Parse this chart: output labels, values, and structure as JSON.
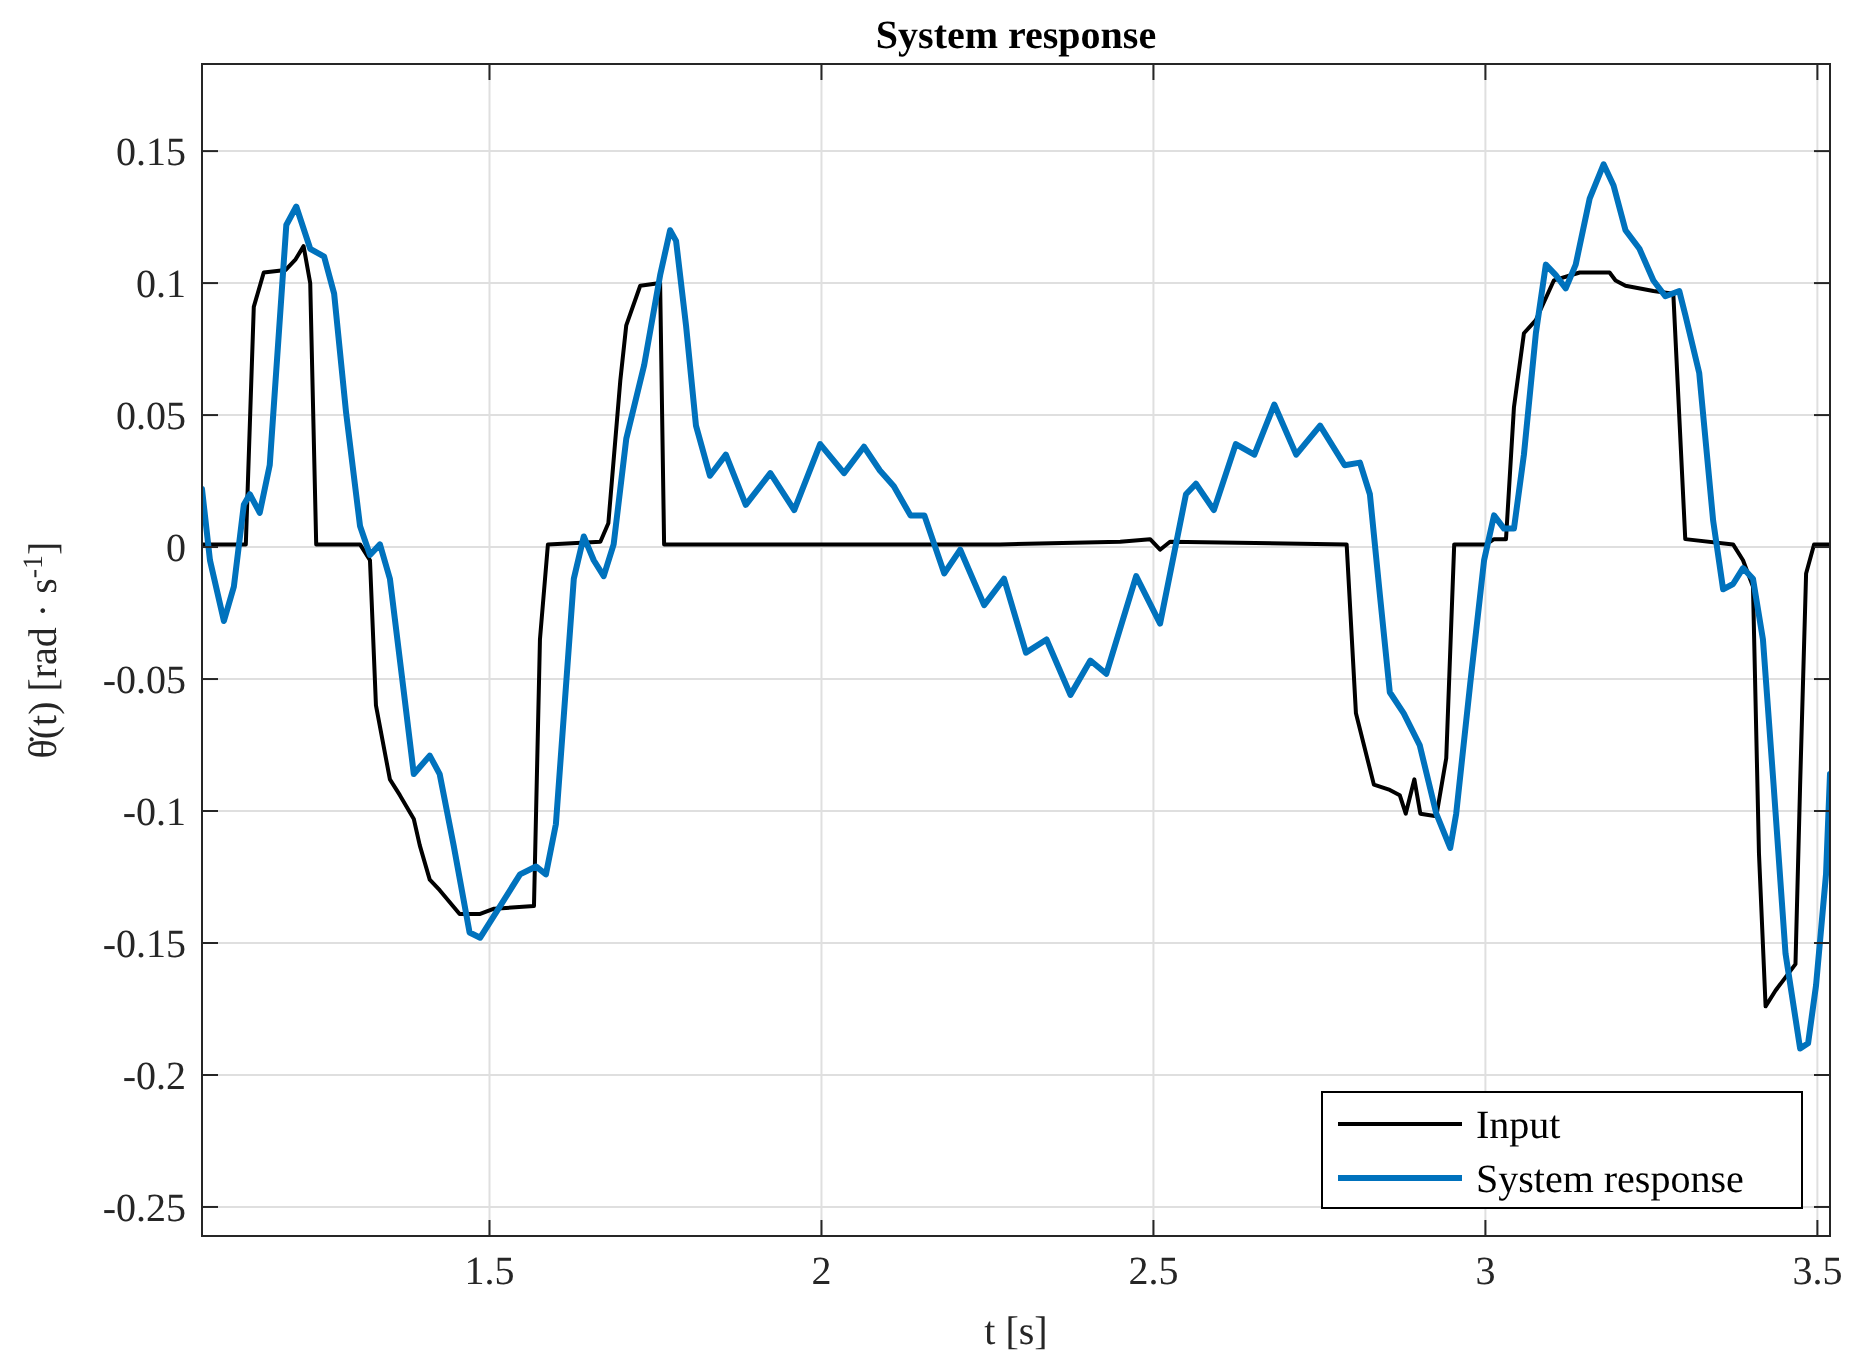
{
  "chart_data": {
    "type": "line",
    "title": "System response",
    "xlabel": "t [s]",
    "ylabel": "θ̇(t) [rad · s$^{-1}$]",
    "xlim": [
      1.067,
      3.519
    ],
    "ylim": [
      -0.261,
      0.183
    ],
    "xticks": [
      1.5,
      2,
      2.5,
      3,
      3.5
    ],
    "yticks": [
      -0.25,
      -0.2,
      -0.15,
      -0.1,
      -0.05,
      0,
      0.05,
      0.1,
      0.15
    ],
    "grid": true,
    "legend": "bottom right",
    "line_style": "solid",
    "series": [
      {
        "name": "Input",
        "color": "#000000",
        "x": [
          1.067,
          1.133,
          1.145,
          1.16,
          1.193,
          1.208,
          1.22,
          1.23,
          1.239,
          1.305,
          1.32,
          1.329,
          1.35,
          1.365,
          1.386,
          1.395,
          1.41,
          1.425,
          1.455,
          1.486,
          1.507,
          1.567,
          1.576,
          1.588,
          1.667,
          1.679,
          1.697,
          1.706,
          1.727,
          1.757,
          1.763,
          1.968,
          2.269,
          2.45,
          2.495,
          2.51,
          2.525,
          2.791,
          2.805,
          2.832,
          2.856,
          2.871,
          2.88,
          2.893,
          2.902,
          2.926,
          2.941,
          2.953,
          3.001,
          3.013,
          3.031,
          3.043,
          3.058,
          3.076,
          3.103,
          3.142,
          3.187,
          3.196,
          3.211,
          3.253,
          3.283,
          3.301,
          3.373,
          3.388,
          3.403,
          3.412,
          3.422,
          3.437,
          3.467,
          3.474,
          3.483,
          3.495,
          3.519
        ],
        "values": [
          0.001,
          0.001,
          0.091,
          0.104,
          0.105,
          0.109,
          0.114,
          0.1,
          0.001,
          0.001,
          -0.005,
          -0.06,
          -0.088,
          -0.094,
          -0.103,
          -0.113,
          -0.126,
          -0.13,
          -0.139,
          -0.139,
          -0.137,
          -0.136,
          -0.035,
          0.001,
          0.002,
          0.009,
          0.063,
          0.084,
          0.099,
          0.1,
          0.001,
          0.001,
          0.001,
          0.002,
          0.003,
          -0.001,
          0.002,
          0.001,
          -0.063,
          -0.09,
          -0.092,
          -0.094,
          -0.101,
          -0.088,
          -0.101,
          -0.102,
          -0.08,
          0.001,
          0.001,
          0.003,
          0.003,
          0.053,
          0.081,
          0.086,
          0.101,
          0.104,
          0.104,
          0.101,
          0.099,
          0.097,
          0.096,
          0.003,
          0.001,
          -0.005,
          -0.015,
          -0.116,
          -0.174,
          -0.168,
          -0.158,
          -0.09,
          -0.01,
          0.001,
          0.001
        ]
      },
      {
        "name": "System response",
        "color": "#0072bd",
        "x": [
          1.067,
          1.079,
          1.1,
          1.115,
          1.13,
          1.139,
          1.154,
          1.169,
          1.194,
          1.209,
          1.23,
          1.251,
          1.266,
          1.284,
          1.305,
          1.32,
          1.335,
          1.35,
          1.371,
          1.386,
          1.41,
          1.425,
          1.446,
          1.47,
          1.486,
          1.516,
          1.546,
          1.57,
          1.585,
          1.6,
          1.627,
          1.642,
          1.657,
          1.672,
          1.687,
          1.706,
          1.733,
          1.757,
          1.772,
          1.781,
          1.796,
          1.811,
          1.832,
          1.856,
          1.886,
          1.923,
          1.959,
          1.998,
          2.034,
          2.064,
          2.088,
          2.109,
          2.134,
          2.155,
          2.185,
          2.209,
          2.245,
          2.275,
          2.308,
          2.339,
          2.375,
          2.405,
          2.429,
          2.474,
          2.51,
          2.549,
          2.564,
          2.591,
          2.624,
          2.652,
          2.682,
          2.715,
          2.751,
          2.788,
          2.811,
          2.826,
          2.841,
          2.856,
          2.877,
          2.901,
          2.926,
          2.947,
          2.956,
          2.977,
          2.998,
          3.013,
          3.028,
          3.043,
          3.058,
          3.076,
          3.091,
          3.106,
          3.121,
          3.136,
          3.157,
          3.178,
          3.193,
          3.211,
          3.232,
          3.253,
          3.271,
          3.292,
          3.301,
          3.322,
          3.343,
          3.358,
          3.373,
          3.388,
          3.403,
          3.418,
          3.434,
          3.452,
          3.474,
          3.486,
          3.498,
          3.513,
          3.519
        ],
        "values": [
          0.022,
          -0.005,
          -0.028,
          -0.015,
          0.016,
          0.02,
          0.013,
          0.031,
          0.122,
          0.129,
          0.113,
          0.11,
          0.096,
          0.051,
          0.008,
          -0.003,
          0.001,
          -0.012,
          -0.055,
          -0.086,
          -0.079,
          -0.086,
          -0.113,
          -0.146,
          -0.148,
          -0.136,
          -0.124,
          -0.121,
          -0.124,
          -0.105,
          -0.012,
          0.004,
          -0.005,
          -0.011,
          0.001,
          0.041,
          0.069,
          0.103,
          0.12,
          0.116,
          0.084,
          0.046,
          0.027,
          0.035,
          0.016,
          0.028,
          0.014,
          0.039,
          0.028,
          0.038,
          0.029,
          0.023,
          0.012,
          0.012,
          -0.01,
          -0.001,
          -0.022,
          -0.012,
          -0.04,
          -0.035,
          -0.056,
          -0.043,
          -0.048,
          -0.011,
          -0.029,
          0.02,
          0.024,
          0.014,
          0.039,
          0.035,
          0.054,
          0.035,
          0.046,
          0.031,
          0.032,
          0.02,
          -0.018,
          -0.055,
          -0.063,
          -0.075,
          -0.101,
          -0.114,
          -0.101,
          -0.052,
          -0.005,
          0.012,
          0.007,
          0.007,
          0.035,
          0.081,
          0.107,
          0.103,
          0.098,
          0.107,
          0.132,
          0.145,
          0.137,
          0.12,
          0.113,
          0.101,
          0.095,
          0.097,
          0.088,
          0.066,
          0.01,
          -0.016,
          -0.014,
          -0.008,
          -0.012,
          -0.035,
          -0.09,
          -0.154,
          -0.19,
          -0.188,
          -0.166,
          -0.124,
          -0.086
        ]
      }
    ]
  }
}
